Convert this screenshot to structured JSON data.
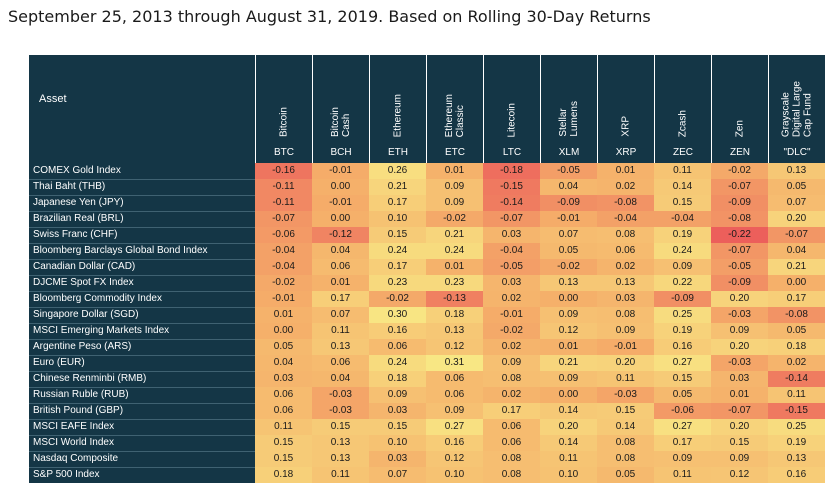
{
  "subtitle": "September 25, 2013 through August 31, 2019. Based on Rolling 30-Day Returns",
  "chart_data": {
    "type": "heatmap",
    "title": "",
    "row_header": "Asset",
    "columns": [
      {
        "name": "Bitcoin",
        "code": "BTC"
      },
      {
        "name": "Bitcoin\nCash",
        "code": "BCH"
      },
      {
        "name": "Ethereum",
        "code": "ETH"
      },
      {
        "name": "Ethereum\nClassic",
        "code": "ETC"
      },
      {
        "name": "Litecoin",
        "code": "LTC"
      },
      {
        "name": "Stellar\nLumens",
        "code": "XLM"
      },
      {
        "name": "XRP",
        "code": "XRP"
      },
      {
        "name": "Zcash",
        "code": "ZEC"
      },
      {
        "name": "Zen",
        "code": "ZEN"
      },
      {
        "name": "Grayscale\nDigital Large\nCap Fund",
        "code": "\"DLC\""
      }
    ],
    "rows": [
      "COMEX Gold Index",
      "Thai Baht (THB)",
      "Japanese Yen (JPY)",
      "Brazilian Real (BRL)",
      "Swiss Franc (CHF)",
      "Bloomberg Barclays Global Bond Index",
      "Canadian Dollar (CAD)",
      "DJCME Spot FX Index",
      "Bloomberg Commodity Index",
      "Singapore Dollar (SGD)",
      "MSCI Emerging Markets Index",
      "Argentine Peso (ARS)",
      "Euro (EUR)",
      "Chinese Renminbi (RMB)",
      "Russian Ruble (RUB)",
      "British Pound (GBP)",
      "MSCI EAFE Index",
      "MSCI World Index",
      "Nasdaq Composite",
      "S&P 500 Index"
    ],
    "values": [
      [
        "-0.16",
        "-0.01",
        "0.26",
        "0.01",
        "-0.18",
        "-0.05",
        "0.01",
        "0.11",
        "-0.02",
        "0.13"
      ],
      [
        "-0.11",
        "0.00",
        "0.21",
        "0.09",
        "-0.15",
        "0.04",
        "0.02",
        "0.14",
        "-0.07",
        "0.05"
      ],
      [
        "-0.11",
        "-0.01",
        "0.17",
        "0.09",
        "-0.14",
        "-0.09",
        "-0.08",
        "0.15",
        "-0.09",
        "0.07"
      ],
      [
        "-0.07",
        "0.00",
        "0.10",
        "-0.02",
        "-0.07",
        "-0.01",
        "-0.04",
        "-0.04",
        "-0.08",
        "0.20"
      ],
      [
        "-0.06",
        "-0.12",
        "0.15",
        "0.21",
        "0.03",
        "0.07",
        "0.08",
        "0.19",
        "-0.22",
        "-0.07"
      ],
      [
        "-0.04",
        "0.04",
        "0.24",
        "0.24",
        "-0.04",
        "0.05",
        "0.06",
        "0.24",
        "-0.07",
        "0.04"
      ],
      [
        "-0.04",
        "0.06",
        "0.17",
        "0.01",
        "-0.05",
        "-0.02",
        "0.02",
        "0.09",
        "-0.05",
        "0.21"
      ],
      [
        "-0.02",
        "0.01",
        "0.23",
        "0.23",
        "0.03",
        "0.13",
        "0.13",
        "0.22",
        "-0.09",
        "0.00"
      ],
      [
        "-0.01",
        "0.17",
        "-0.02",
        "-0.13",
        "0.02",
        "0.00",
        "0.03",
        "-0.09",
        "0.20",
        "0.17"
      ],
      [
        "0.01",
        "0.07",
        "0.30",
        "0.18",
        "-0.01",
        "0.09",
        "0.08",
        "0.25",
        "-0.03",
        "-0.08"
      ],
      [
        "0.00",
        "0.11",
        "0.16",
        "0.13",
        "-0.02",
        "0.12",
        "0.09",
        "0.19",
        "0.09",
        "0.05"
      ],
      [
        "0.05",
        "0.13",
        "0.06",
        "0.12",
        "0.02",
        "0.01",
        "-0.01",
        "0.16",
        "0.20",
        "0.18"
      ],
      [
        "0.04",
        "0.06",
        "0.24",
        "0.31",
        "0.09",
        "0.21",
        "0.20",
        "0.27",
        "-0.03",
        "0.02"
      ],
      [
        "0.03",
        "0.04",
        "0.18",
        "0.06",
        "0.08",
        "0.09",
        "0.11",
        "0.15",
        "0.03",
        "-0.14"
      ],
      [
        "0.06",
        "-0.03",
        "0.09",
        "0.06",
        "0.02",
        "0.00",
        "-0.03",
        "0.05",
        "0.01",
        "0.11"
      ],
      [
        "0.06",
        "-0.03",
        "0.03",
        "0.09",
        "0.17",
        "0.14",
        "0.15",
        "-0.06",
        "-0.07",
        "-0.15"
      ],
      [
        "0.11",
        "0.15",
        "0.15",
        "0.27",
        "0.06",
        "0.20",
        "0.14",
        "0.27",
        "0.20",
        "0.25"
      ],
      [
        "0.15",
        "0.13",
        "0.10",
        "0.16",
        "0.06",
        "0.14",
        "0.08",
        "0.17",
        "0.15",
        "0.19"
      ],
      [
        "0.15",
        "0.13",
        "0.03",
        "0.12",
        "0.08",
        "0.11",
        "0.08",
        "0.09",
        "0.09",
        "0.13"
      ],
      [
        "0.18",
        "0.11",
        "0.07",
        "0.10",
        "0.08",
        "0.10",
        "0.05",
        "0.11",
        "0.12",
        "0.16"
      ]
    ],
    "color_scale": {
      "min": -0.22,
      "mid": 0.0,
      "max": 0.31,
      "low_color": "#ec5f5b",
      "mid_color": "#f5b06a",
      "high_color": "#f8e784"
    },
    "legend": "none",
    "grid": false
  },
  "colors": {
    "header_bg": "#143646",
    "header_text": "#ffffff",
    "row_separator": "#3f6272"
  }
}
